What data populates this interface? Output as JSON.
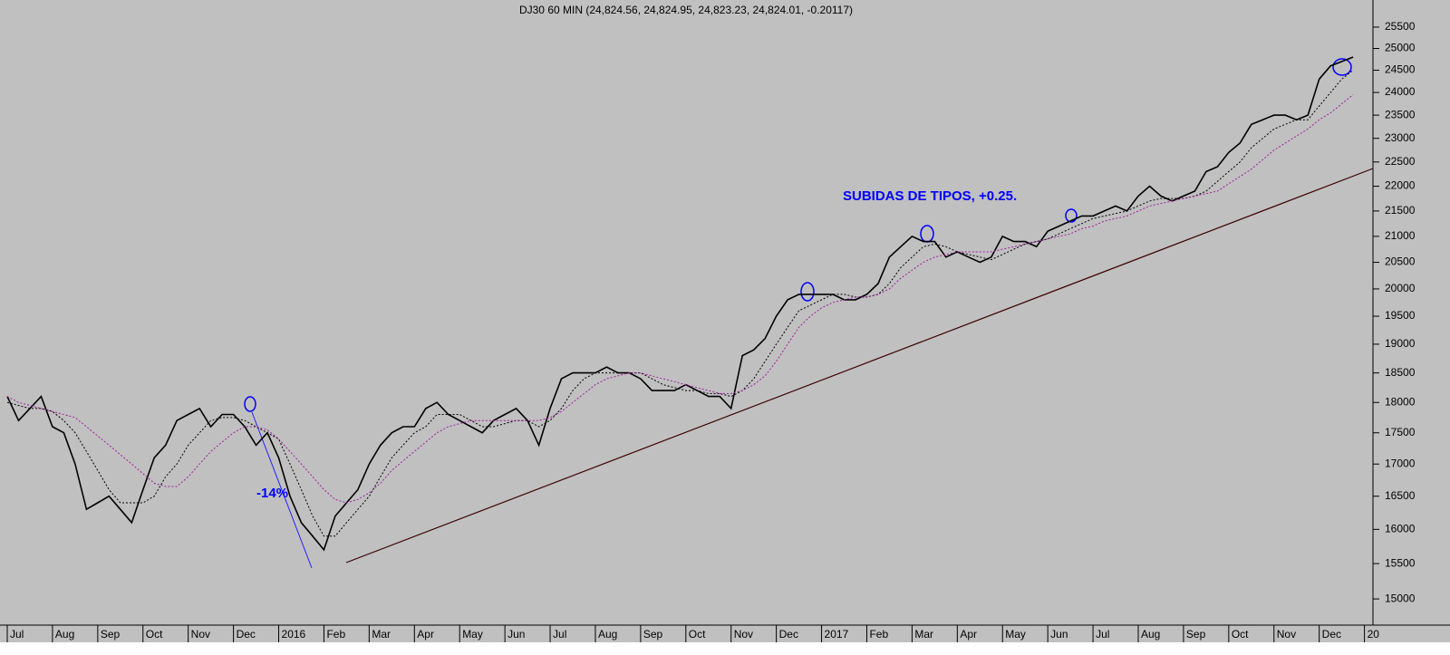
{
  "chart_data": {
    "type": "line",
    "title": "DJ30 60 MIN (24,824.56, 24,824.95, 24,823.23, 24,824.01, -0.20117)",
    "annotations": [
      "SUBIDAS DE TIPOS, +0.25.",
      "-14%"
    ],
    "log_scale": true,
    "grid": false,
    "ylim": [
      14640,
      26150
    ],
    "yticks": [
      15000,
      15500,
      16000,
      16500,
      17000,
      17500,
      18000,
      18500,
      19000,
      19500,
      20000,
      20500,
      21000,
      21500,
      22000,
      22500,
      23000,
      23500,
      24000,
      24500,
      25000,
      25500
    ],
    "categories": [
      "Jul",
      null,
      null,
      null,
      "Aug",
      null,
      null,
      null,
      "Sep",
      null,
      null,
      null,
      "Oct",
      null,
      null,
      null,
      "Nov",
      null,
      null,
      null,
      "Dec",
      null,
      null,
      null,
      "2016",
      null,
      null,
      null,
      "Feb",
      null,
      null,
      null,
      "Mar",
      null,
      null,
      null,
      "Apr",
      null,
      null,
      null,
      "May",
      null,
      null,
      null,
      "Jun",
      null,
      null,
      null,
      "Jul",
      null,
      null,
      null,
      "Aug",
      null,
      null,
      null,
      "Sep",
      null,
      null,
      null,
      "Oct",
      null,
      null,
      null,
      "Nov",
      null,
      null,
      null,
      "Dec",
      null,
      null,
      null,
      "2017",
      null,
      null,
      null,
      "Feb",
      null,
      null,
      null,
      "Mar",
      null,
      null,
      null,
      "Apr",
      null,
      null,
      null,
      "May",
      null,
      null,
      null,
      "Jun",
      null,
      null,
      null,
      "Jul",
      null,
      null,
      null,
      "Aug",
      null,
      null,
      null,
      "Sep",
      null,
      null,
      null,
      "Oct",
      null,
      null,
      null,
      "Nov",
      null,
      null,
      null,
      "Dec",
      null,
      null,
      null,
      "20"
    ],
    "series": [
      {
        "color": "#000000",
        "dash": "none",
        "width": 1.6,
        "values": [
          18100,
          17700,
          17900,
          18100,
          17600,
          17500,
          17000,
          16300,
          16400,
          16500,
          16300,
          16100,
          16600,
          17100,
          17300,
          17700,
          17800,
          17900,
          17600,
          17800,
          17800,
          17600,
          17300,
          17500,
          17100,
          16500,
          16100,
          15900,
          15700,
          16200,
          16400,
          16600,
          17000,
          17300,
          17500,
          17600,
          17600,
          17900,
          18000,
          17800,
          17700,
          17600,
          17500,
          17700,
          17800,
          17900,
          17700,
          17300,
          17900,
          18400,
          18500,
          18500,
          18500,
          18600,
          18500,
          18500,
          18400,
          18200,
          18200,
          18200,
          18300,
          18200,
          18100,
          18100,
          17900,
          18800,
          18900,
          19100,
          19500,
          19800,
          19900,
          19900,
          19900,
          19900,
          19800,
          19800,
          19900,
          20100,
          20600,
          20800,
          21000,
          20900,
          20900,
          20600,
          20700,
          20600,
          20500,
          20600,
          21000,
          20900,
          20900,
          20800,
          21100,
          21200,
          21300,
          21400,
          21400,
          21500,
          21600,
          21500,
          21800,
          22000,
          21800,
          21700,
          21800,
          21900,
          22300,
          22400,
          22700,
          22900,
          23300,
          23400,
          23500,
          23500,
          23400,
          23500,
          24300,
          24600,
          24700,
          24800,
          null
        ]
      },
      {
        "color": "#000000",
        "dash": "2,2",
        "width": 1,
        "values": [
          18000,
          17950,
          17900,
          17900,
          17850,
          17700,
          17500,
          17200,
          16900,
          16600,
          16400,
          16400,
          16400,
          16500,
          16800,
          17000,
          17300,
          17500,
          17700,
          17750,
          17750,
          17700,
          17600,
          17500,
          17400,
          17000,
          16600,
          16200,
          15900,
          15900,
          16100,
          16300,
          16500,
          16800,
          17100,
          17300,
          17500,
          17600,
          17800,
          17800,
          17800,
          17700,
          17600,
          17600,
          17650,
          17700,
          17700,
          17600,
          17700,
          17900,
          18200,
          18400,
          18500,
          18500,
          18500,
          18500,
          18500,
          18400,
          18300,
          18250,
          18200,
          18200,
          18150,
          18150,
          18100,
          18200,
          18400,
          18700,
          19000,
          19300,
          19600,
          19700,
          19800,
          19900,
          19900,
          19850,
          19850,
          19900,
          20100,
          20400,
          20600,
          20800,
          20850,
          20800,
          20700,
          20650,
          20600,
          20550,
          20650,
          20750,
          20850,
          20900,
          20950,
          21050,
          21150,
          21250,
          21350,
          21400,
          21450,
          21500,
          21600,
          21700,
          21750,
          21750,
          21750,
          21800,
          21900,
          22100,
          22300,
          22500,
          22800,
          23000,
          23200,
          23300,
          23400,
          23400,
          23700,
          24000,
          24300,
          24500,
          null
        ]
      },
      {
        "color": "#a020a0",
        "dash": "2,2",
        "width": 1,
        "values": [
          18100,
          18000,
          17950,
          17900,
          17850,
          17800,
          17750,
          17600,
          17450,
          17300,
          17150,
          17000,
          16850,
          16700,
          16650,
          16650,
          16800,
          17000,
          17200,
          17350,
          17500,
          17600,
          17600,
          17550,
          17400,
          17200,
          17000,
          16800,
          16600,
          16450,
          16400,
          16450,
          16550,
          16700,
          16900,
          17050,
          17200,
          17350,
          17500,
          17600,
          17650,
          17700,
          17700,
          17700,
          17700,
          17700,
          17700,
          17700,
          17750,
          17850,
          18000,
          18150,
          18300,
          18400,
          18450,
          18500,
          18500,
          18450,
          18400,
          18350,
          18300,
          18250,
          18200,
          18150,
          18150,
          18200,
          18300,
          18450,
          18700,
          19000,
          19300,
          19500,
          19650,
          19750,
          19800,
          19850,
          19850,
          19900,
          20000,
          20200,
          20350,
          20500,
          20600,
          20650,
          20700,
          20700,
          20700,
          20700,
          20750,
          20800,
          20850,
          20900,
          20950,
          21000,
          21050,
          21150,
          21200,
          21300,
          21350,
          21400,
          21500,
          21600,
          21650,
          21700,
          21750,
          21800,
          21850,
          21900,
          22050,
          22200,
          22350,
          22550,
          22750,
          22900,
          23050,
          23200,
          23400,
          23550,
          23750,
          23950,
          null
        ]
      }
    ]
  }
}
